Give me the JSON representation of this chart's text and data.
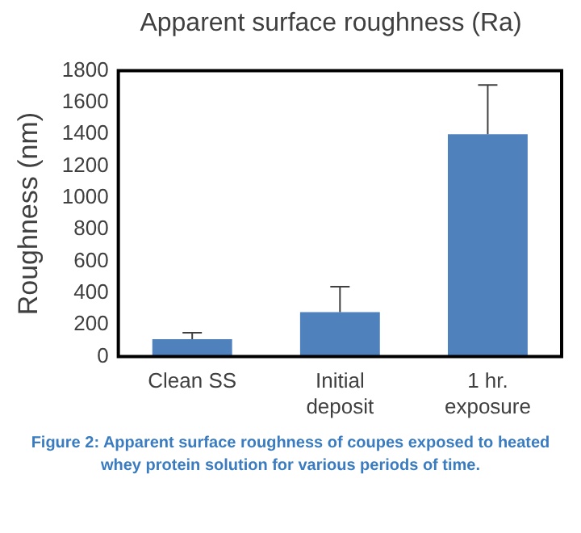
{
  "chart_data": {
    "type": "bar",
    "title": "Apparent surface roughness (Ra)",
    "ylabel": "Roughness (nm)",
    "categories": [
      "Clean SS",
      "Initial deposit",
      "1 hr. exposure"
    ],
    "values": [
      110,
      280,
      1400
    ],
    "color": "#4f81bd",
    "errors": [
      [
        110,
        150
      ],
      [
        280,
        440
      ],
      [
        1400,
        1710
      ]
    ],
    "ylim": [
      0,
      1800
    ],
    "yticks": [
      0,
      200,
      400,
      600,
      800,
      1000,
      1200,
      1400,
      1600,
      1800
    ],
    "grid": false,
    "legend": false,
    "annotations": [
      "Figure 2: Apparent  surface roughness of coupes exposed to heated whey protein solution  for various periods of time."
    ]
  }
}
